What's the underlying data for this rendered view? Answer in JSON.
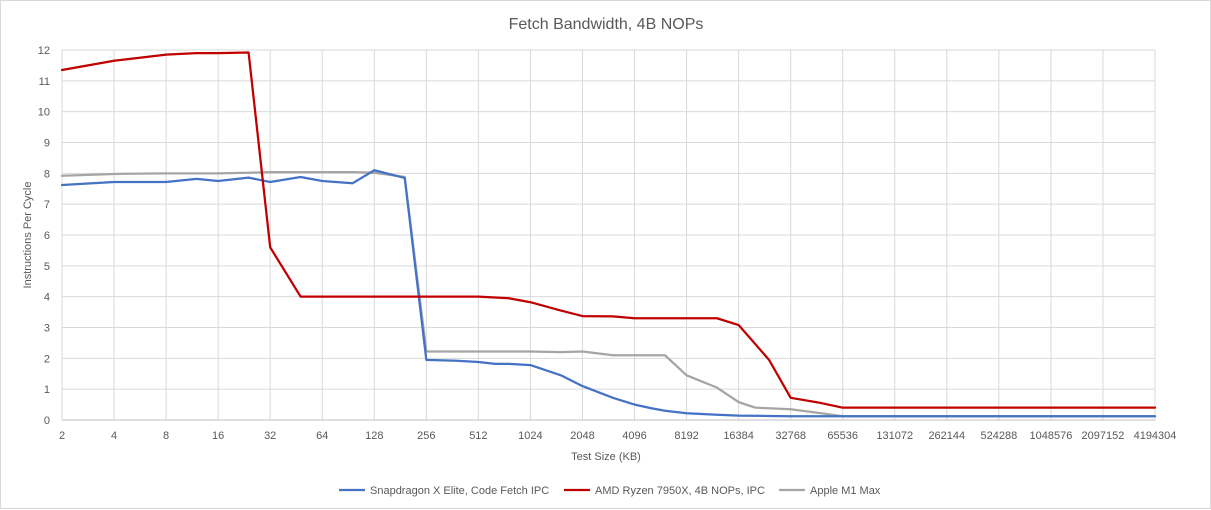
{
  "chart_data": {
    "type": "line",
    "title": "Fetch Bandwidth, 4B NOPs",
    "xlabel": "Test Size (KB)",
    "ylabel": "Instructions Per Cycle",
    "x_scale": "log2",
    "xlim": [
      2,
      4194304
    ],
    "ylim": [
      0,
      12
    ],
    "x_ticks": [
      "2",
      "4",
      "8",
      "16",
      "32",
      "64",
      "128",
      "256",
      "512",
      "1024",
      "2048",
      "4096",
      "8192",
      "16384",
      "32768",
      "65536",
      "131072",
      "262144",
      "524288",
      "1048576",
      "2097152",
      "4194304"
    ],
    "y_ticks": [
      "0",
      "1",
      "2",
      "3",
      "4",
      "5",
      "6",
      "7",
      "8",
      "9",
      "10",
      "11",
      "12"
    ],
    "grid": true,
    "legend_position": "bottom",
    "series": [
      {
        "name": "Snapdragon X Elite, Code Fetch IPC",
        "color": "#4472c4",
        "x": [
          2,
          4,
          8,
          12,
          16,
          24,
          32,
          48,
          64,
          96,
          128,
          192,
          256,
          384,
          512,
          640,
          768,
          1024,
          1536,
          2048,
          3072,
          4096,
          5120,
          6144,
          8192,
          12288,
          16384,
          24576,
          32768,
          49152,
          65536,
          131072,
          262144,
          524288,
          1048576,
          2097152,
          4194304
        ],
        "y": [
          7.62,
          7.72,
          7.72,
          7.82,
          7.75,
          7.86,
          7.72,
          7.88,
          7.75,
          7.68,
          8.1,
          7.85,
          1.95,
          1.92,
          1.88,
          1.82,
          1.82,
          1.78,
          1.45,
          1.1,
          0.72,
          0.5,
          0.38,
          0.3,
          0.22,
          0.17,
          0.14,
          0.13,
          0.12,
          0.12,
          0.12,
          0.12,
          0.12,
          0.12,
          0.12,
          0.12,
          0.12
        ]
      },
      {
        "name": "AMD Ryzen 7950X, 4B NOPs, IPC",
        "color": "#c00000",
        "x": [
          2,
          4,
          8,
          12,
          16,
          24,
          32,
          48,
          64,
          96,
          128,
          192,
          256,
          384,
          512,
          768,
          1024,
          1536,
          2048,
          3072,
          4096,
          6144,
          8192,
          12288,
          16384,
          24576,
          32768,
          49152,
          65536,
          131072,
          262144,
          524288,
          1048576,
          2097152,
          4194304
        ],
        "y": [
          11.35,
          11.65,
          11.85,
          11.9,
          11.9,
          11.92,
          5.6,
          4.0,
          4.0,
          4.0,
          4.0,
          4.0,
          4.0,
          4.0,
          4.0,
          3.95,
          3.82,
          3.55,
          3.37,
          3.36,
          3.3,
          3.3,
          3.3,
          3.3,
          3.08,
          1.95,
          0.72,
          0.55,
          0.4,
          0.4,
          0.4,
          0.4,
          0.4,
          0.4,
          0.4
        ]
      },
      {
        "name": "Apple M1 Max",
        "color": "#a5a5a5",
        "x": [
          2,
          4,
          8,
          16,
          24,
          32,
          64,
          96,
          128,
          192,
          256,
          384,
          512,
          768,
          1024,
          1536,
          2048,
          3072,
          4096,
          6144,
          8192,
          12288,
          16384,
          20480,
          24576,
          32768,
          49152,
          65536,
          131072,
          262144,
          524288,
          1048576,
          2097152,
          4194304
        ],
        "y": [
          7.92,
          7.98,
          8.0,
          8.0,
          8.02,
          8.04,
          8.04,
          8.04,
          8.02,
          7.88,
          2.22,
          2.22,
          2.22,
          2.22,
          2.22,
          2.2,
          2.22,
          2.1,
          2.1,
          2.1,
          1.45,
          1.05,
          0.58,
          0.4,
          0.38,
          0.35,
          0.22,
          0.12,
          0.12,
          0.12,
          0.12,
          0.12,
          0.12,
          0.12
        ]
      }
    ]
  }
}
